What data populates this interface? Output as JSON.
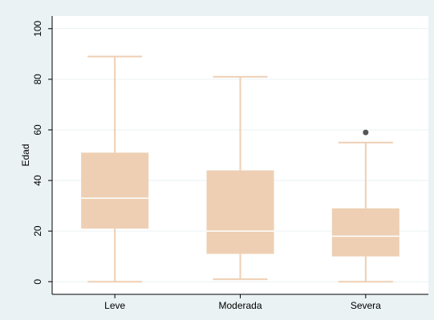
{
  "chart_data": {
    "type": "boxplot",
    "ylabel": "Edad",
    "xlabel": "",
    "ylim": [
      -5,
      105
    ],
    "yticks": [
      0,
      20,
      40,
      60,
      80,
      100
    ],
    "ytick_labels": [
      "0",
      "20",
      "40",
      "60",
      "80",
      "100"
    ],
    "grid": true,
    "categories": [
      "Leve",
      "Moderada",
      "Severa"
    ],
    "boxes": [
      {
        "category": "Leve",
        "whisker_low": 0,
        "q1": 21,
        "median": 33,
        "q3": 51,
        "whisker_high": 89,
        "outliers": []
      },
      {
        "category": "Moderada",
        "whisker_low": 1,
        "q1": 11,
        "median": 20,
        "q3": 44,
        "whisker_high": 81,
        "outliers": []
      },
      {
        "category": "Severa",
        "whisker_low": 0,
        "q1": 10,
        "median": 18,
        "q3": 29,
        "whisker_high": 55,
        "outliers": [
          59
        ]
      }
    ],
    "colors": {
      "box_fill": "#eecfb3",
      "whisker": "#eecfb3",
      "median": "#ffffff",
      "outlier": "#555555",
      "plot_background": "#ffffff",
      "outer_background": "#eaf2f3",
      "grid": "#eaf2f3",
      "axis": "#000000"
    }
  }
}
